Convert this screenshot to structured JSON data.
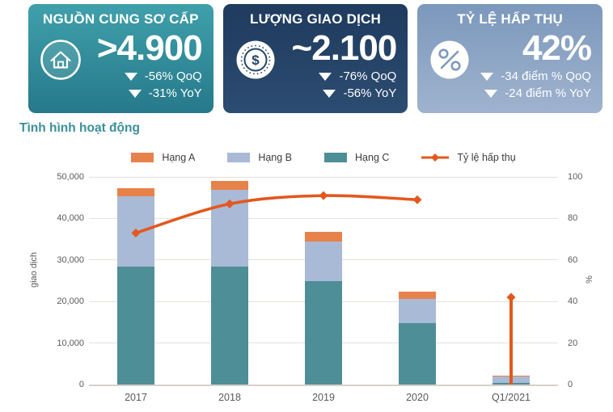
{
  "cards": [
    {
      "title": "NGUỒN CUNG SƠ CẤP",
      "icon": "house-icon",
      "value": ">4.900",
      "changes": [
        "-56% QoQ",
        "-31% YoY"
      ],
      "gradient": [
        "#3FA0AB",
        "#26798A"
      ]
    },
    {
      "title": "LƯỢNG GIAO DỊCH",
      "icon": "dollar-coin-icon",
      "value": "~2.100",
      "changes": [
        "-76% QoQ",
        "-56% YoY"
      ],
      "gradient": [
        "#1F3B5E",
        "#2C4C71"
      ]
    },
    {
      "title": "TỶ LỆ HẤP THỤ",
      "icon": "percent-icon",
      "value": "42%",
      "changes": [
        "-34  điểm % QoQ",
        "-24  điểm % YoY"
      ],
      "gradient": [
        "#7C98BC",
        "#9FB3CE"
      ]
    }
  ],
  "section": {
    "title": "Tình hình hoạt động",
    "color": "#3A8F9B"
  },
  "chart_data": {
    "type": "bar",
    "subtype": "stacked-bar-with-line",
    "title": "Tình hình hoạt động",
    "categories": [
      "2017",
      "2018",
      "2019",
      "2020",
      "Q1/2021"
    ],
    "bar_series": [
      {
        "name": "Hạng A",
        "color": "#E8824B",
        "values": [
          2000,
          2100,
          2300,
          1800,
          150
        ]
      },
      {
        "name": "Hạng B",
        "color": "#A9BAD6",
        "values": [
          16900,
          18500,
          9500,
          5800,
          1750
        ]
      },
      {
        "name": "Hạng C",
        "color": "#4D8E97",
        "values": [
          28400,
          28400,
          24900,
          14800,
          300
        ]
      }
    ],
    "stack_order_bottom_to_top": [
      "Hạng C",
      "Hạng B",
      "Hạng A"
    ],
    "line_series": {
      "name": "Tỷ lệ hấp thụ",
      "color": "#E3581E",
      "values": [
        73,
        87,
        91,
        89,
        42
      ],
      "note": "last point drawn as vertical drop line at Q1/2021"
    },
    "left_axis": {
      "label": "giao dịch",
      "ticks": [
        0,
        10000,
        20000,
        30000,
        40000,
        50000
      ],
      "max": 50000
    },
    "right_axis": {
      "label": "%",
      "ticks": [
        0,
        20,
        40,
        60,
        80,
        100
      ],
      "max": 100
    },
    "grid": true,
    "legend_position": "top"
  }
}
